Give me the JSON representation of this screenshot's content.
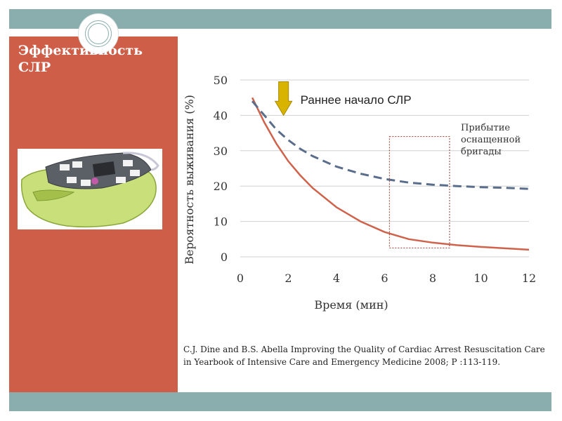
{
  "slide": {
    "title": "Эффективность СЛР",
    "citation": "C.J. Dine and B.S. Abella Improving the Quality of Cardiac Arrest Resuscitation Care in Yearbook of Intensive Care and Emergency Medicine 2008; P :113-119.",
    "colors": {
      "band": "#8aaeae",
      "sidebar": "#cf5e48",
      "text_on_sidebar": "#ffffff"
    }
  },
  "device_image": {
    "icon": "aed-defibrillator-icon"
  },
  "chart_data": {
    "type": "line",
    "xlabel": "Время (мин)",
    "ylabel": "Вероятность выживания (%)",
    "xlim": [
      0,
      12
    ],
    "ylim": [
      0,
      50
    ],
    "x_ticks": [
      "0",
      "2",
      "4",
      "6",
      "8",
      "10",
      "12"
    ],
    "y_ticks": [
      "0",
      "10",
      "20",
      "30",
      "40",
      "50"
    ],
    "grid": "horizontal",
    "series": [
      {
        "name": "",
        "style": "solid",
        "color": "#d0624b",
        "x": [
          0.5,
          1,
          1.5,
          2,
          2.5,
          3,
          4,
          5,
          6,
          7,
          8,
          9,
          10,
          11,
          12
        ],
        "y": [
          45,
          38,
          32,
          27,
          23,
          19.5,
          14,
          10,
          7,
          5,
          4,
          3.3,
          2.8,
          2.4,
          2
        ]
      },
      {
        "name": "",
        "style": "dashed",
        "color": "#5a6e8c",
        "x": [
          0.5,
          1,
          1.5,
          2,
          2.5,
          3,
          4,
          5,
          6,
          7,
          8,
          9,
          10,
          11,
          12
        ],
        "y": [
          44,
          40,
          36,
          33,
          30.5,
          28.5,
          25.5,
          23.5,
          22,
          21,
          20.4,
          20,
          19.7,
          19.5,
          19.2
        ]
      }
    ],
    "annotations": {
      "early_start": {
        "label": "Раннее начало СЛР",
        "x": 1.8,
        "arrow_color": "#d8b300"
      },
      "team_arrival": {
        "label_lines": [
          "Прибытие",
          "оснащенной",
          "бригады"
        ],
        "x_range": [
          6.2,
          8.7
        ],
        "y_range": [
          2.5,
          34
        ]
      }
    }
  }
}
